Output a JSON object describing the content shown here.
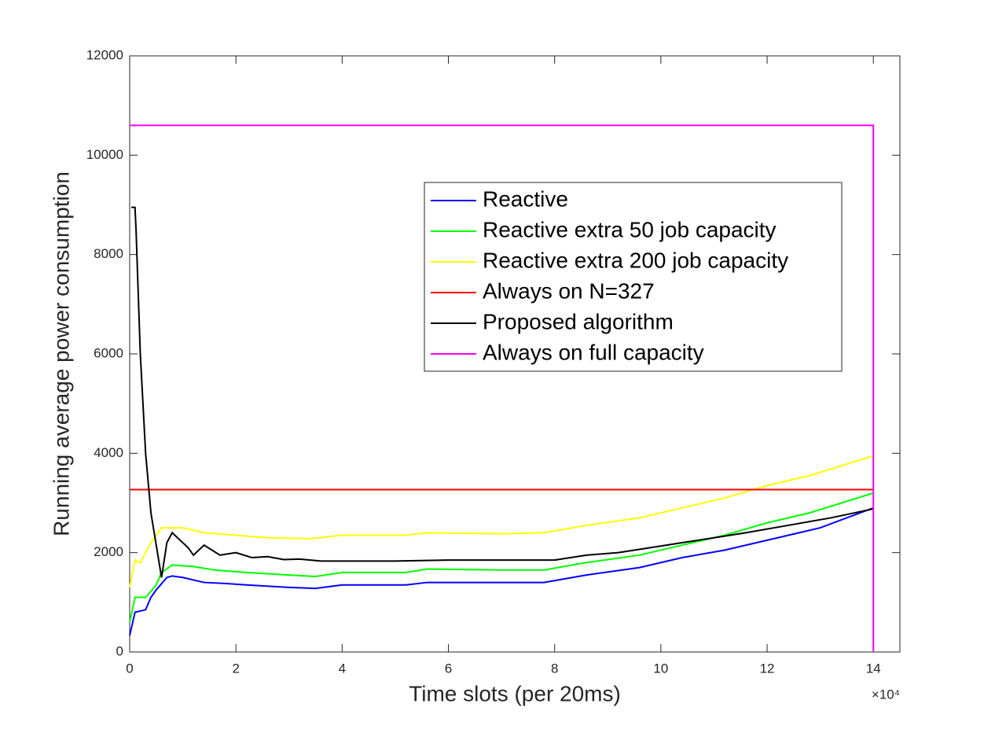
{
  "chart_data": {
    "type": "line",
    "xlabel": "Time slots (per 20ms)",
    "ylabel": "Running average power consumption",
    "x_multiplier": "×10⁴",
    "xlim": [
      0,
      14.5
    ],
    "ylim": [
      0,
      12000
    ],
    "xticks": [
      0,
      2,
      4,
      6,
      8,
      10,
      12,
      14
    ],
    "yticks": [
      0,
      2000,
      4000,
      6000,
      8000,
      10000,
      12000
    ],
    "legend": "northeast",
    "grid": false,
    "series": [
      {
        "name": "Reactive",
        "color": "#0000ff",
        "x": [
          0,
          0.1,
          0.3,
          0.4,
          0.5,
          0.7,
          0.8,
          1.0,
          1.4,
          1.8,
          2.2,
          3.0,
          3.5,
          4.0,
          5.2,
          5.6,
          7.0,
          7.8,
          8.6,
          9.6,
          10.4,
          11.2,
          12.2,
          13.0,
          14.0
        ],
        "values": [
          330,
          800,
          850,
          1100,
          1250,
          1500,
          1530,
          1500,
          1400,
          1380,
          1350,
          1300,
          1280,
          1350,
          1350,
          1400,
          1400,
          1400,
          1550,
          1700,
          1900,
          2050,
          2300,
          2500,
          2900
        ]
      },
      {
        "name": "Reactive extra 50 job capacity",
        "color": "#00ff00",
        "x": [
          0,
          0.1,
          0.3,
          0.5,
          0.6,
          0.8,
          1.2,
          1.6,
          2.2,
          3.0,
          3.5,
          4.0,
          5.2,
          5.6,
          7.0,
          7.8,
          8.6,
          9.6,
          10.4,
          11.2,
          12.0,
          12.8,
          14.0
        ],
        "values": [
          600,
          1100,
          1100,
          1350,
          1600,
          1750,
          1720,
          1650,
          1600,
          1550,
          1520,
          1600,
          1600,
          1670,
          1650,
          1650,
          1800,
          1950,
          2150,
          2350,
          2600,
          2800,
          3200
        ]
      },
      {
        "name": "Reactive extra 200 job capacity",
        "color": "#ffff00",
        "x": [
          0,
          0.1,
          0.2,
          0.4,
          0.6,
          1.0,
          1.4,
          2.0,
          2.6,
          3.4,
          4.0,
          5.2,
          5.6,
          7.0,
          7.8,
          8.6,
          9.6,
          10.4,
          11.2,
          12.0,
          12.8,
          14.0
        ],
        "values": [
          1300,
          1850,
          1800,
          2200,
          2500,
          2500,
          2400,
          2350,
          2300,
          2280,
          2350,
          2350,
          2400,
          2380,
          2400,
          2550,
          2700,
          2900,
          3100,
          3350,
          3550,
          3950
        ]
      },
      {
        "name": "Always on N=327",
        "color": "#ff0000",
        "x": [
          0,
          14.0
        ],
        "values": [
          3270,
          3270
        ]
      },
      {
        "name": "Proposed algorithm",
        "color": "#000000",
        "x": [
          0.03,
          0.1,
          0.12,
          0.2,
          0.3,
          0.4,
          0.6,
          0.7,
          0.8,
          1.1,
          1.2,
          1.4,
          1.7,
          2.0,
          2.3,
          2.6,
          2.9,
          3.2,
          3.6,
          4.0,
          5.0,
          6.0,
          7.0,
          8.0,
          8.6,
          9.2,
          9.8,
          10.4,
          11.0,
          11.6,
          12.4,
          13.2,
          14.0
        ],
        "values": [
          8950,
          8950,
          8500,
          6000,
          4000,
          2800,
          1500,
          2200,
          2400,
          2100,
          1950,
          2150,
          1950,
          2000,
          1900,
          1920,
          1860,
          1870,
          1830,
          1830,
          1830,
          1850,
          1850,
          1850,
          1950,
          2000,
          2100,
          2200,
          2300,
          2400,
          2550,
          2700,
          2880
        ]
      },
      {
        "name": "Always on full capacity",
        "color": "#ff00ff",
        "x": [
          0,
          14.0,
          14.0
        ],
        "values": [
          10600,
          10600,
          0
        ]
      }
    ]
  }
}
